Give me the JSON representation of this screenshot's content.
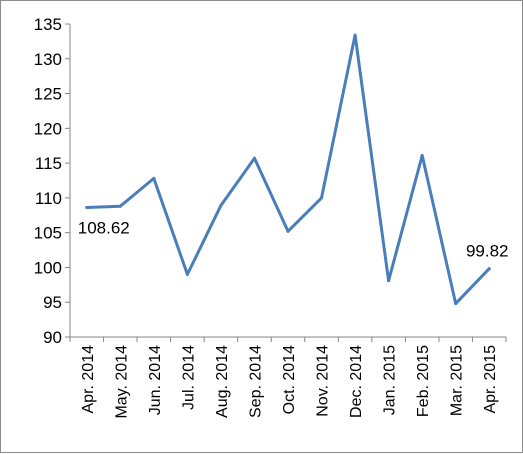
{
  "chart_data": {
    "type": "line",
    "title": "",
    "xlabel": "",
    "ylabel": "",
    "categories": [
      "Apr. 2014",
      "May. 2014",
      "Jun. 2014",
      "Jul. 2014",
      "Aug. 2014",
      "Sep. 2014",
      "Oct. 2014",
      "Nov. 2014",
      "Dec. 2014",
      "Jan. 2015",
      "Feb. 2015",
      "Mar. 2015",
      "Apr. 2015"
    ],
    "series": [
      {
        "values": [
          108.62,
          108.8,
          112.8,
          99.0,
          108.9,
          115.7,
          105.2,
          110.0,
          133.4,
          98.1,
          116.1,
          94.8,
          99.82
        ],
        "color": "#4a7ebb"
      }
    ],
    "ylim": [
      90,
      135
    ],
    "yticks": [
      "90",
      "95",
      "100",
      "105",
      "110",
      "115",
      "120",
      "125",
      "130",
      "135"
    ],
    "data_labels": [
      {
        "index": 0,
        "text": "108.62"
      },
      {
        "index": 12,
        "text": "99.82"
      }
    ],
    "grid": false,
    "legend": "none"
  }
}
